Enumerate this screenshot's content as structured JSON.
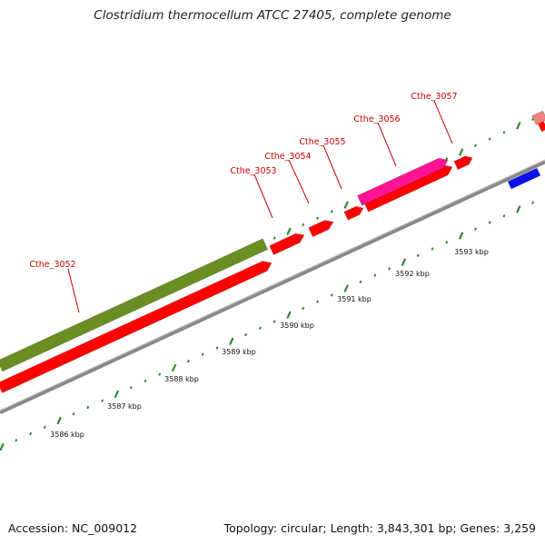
{
  "title": "Clostridium thermocellum ATCC 27405, complete genome",
  "footer": {
    "accession": "Accession: NC_009012",
    "summary": "Topology: circular; Length: 3,843,301 bp; Genes: 3,259"
  },
  "colors": {
    "background": "#ffffff",
    "backbone": "#888888",
    "tick": "#2e8b2e",
    "label": "#cc0000",
    "cds_forward": "#ff0000",
    "feature_olive": "#6b8e23",
    "feature_magenta": "#ff1493",
    "feature_blue": "#1010ee",
    "feature_pink": "#f08080"
  },
  "scale_labels": [
    "3586 kbp",
    "3587 kbp",
    "3588 kbp",
    "3589 kbp",
    "3590 kbp",
    "3591 kbp",
    "3592 kbp",
    "3593 kbp"
  ],
  "gene_labels": [
    "Cthe_3052",
    "Cthe_3053",
    "Cthe_3054",
    "Cthe_3055",
    "Cthe_3056",
    "Cthe_3057"
  ]
}
